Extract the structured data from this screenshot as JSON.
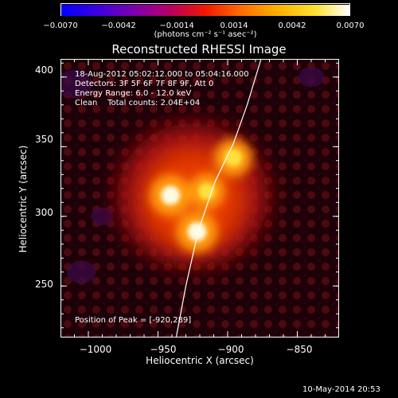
{
  "colorbar": {
    "tick_labels": [
      "−0.0070",
      "−0.0042",
      "−0.0014",
      "0.0014",
      "0.0042",
      "0.0070"
    ],
    "units_label": "(photons cm⁻² s⁻¹ asec⁻²)",
    "range": [
      -0.007,
      0.007
    ],
    "colormap": [
      "#0000ff",
      "#3a00e0",
      "#7a00b0",
      "#b80060",
      "#f01800",
      "#ff6a00",
      "#ffb000",
      "#ffe030",
      "#ffffff"
    ]
  },
  "plot": {
    "title": "Reconstructed RHESSI Image",
    "info_lines": [
      "18-Aug-2012 05:02:12.000 to 05:04:16.000",
      "Detectors: 3F 5F 6F 7F 8F 9F, Att 0",
      "Energy Range: 6.0 - 12.0 keV",
      "Clean    Total counts: 2.04E+04"
    ],
    "peak_text": "Position of Peak = [-920,289]",
    "x_axis": {
      "label": "Heliocentric X (arcsec)",
      "ticks": [
        "−1000",
        "−950",
        "−900",
        "−850"
      ],
      "range": [
        -1020,
        -820
      ]
    },
    "y_axis": {
      "label": "Heliocentric Y (arcsec)",
      "ticks": [
        "250",
        "300",
        "350",
        "400"
      ],
      "range": [
        213,
        413
      ]
    },
    "sources": [
      {
        "x": -941,
        "y": 315,
        "intensity": 1.0
      },
      {
        "x": -922,
        "y": 289,
        "intensity": 1.0
      },
      {
        "x": -915,
        "y": 318,
        "intensity": 0.85
      },
      {
        "x": -896,
        "y": 342,
        "intensity": 0.9
      }
    ],
    "limb_color": "#ffffff"
  },
  "footer": {
    "timestamp": "10-May-2014 20:53"
  }
}
